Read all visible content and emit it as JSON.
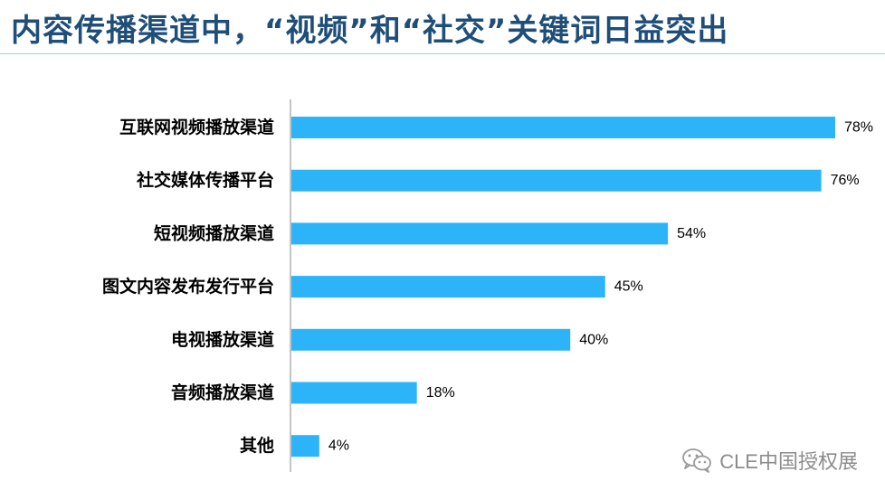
{
  "title": "内容传播渠道中，“视频”和“社交”关键词日益突出",
  "watermark": {
    "icon": "wechat-icon",
    "text": "CLE中国授权展"
  },
  "colors": {
    "title": "#1f4e79",
    "bar": "#2db4f8",
    "axis": "#888888",
    "rule": "#9fd6c8"
  },
  "chart_data": {
    "type": "bar",
    "orientation": "horizontal",
    "categories": [
      "互联网视频播放渠道",
      "社交媒体传播平台",
      "短视频播放渠道",
      "图文内容发布发行平台",
      "电视播放渠道",
      "音频播放渠道",
      "其他"
    ],
    "values": [
      78,
      76,
      54,
      45,
      40,
      18,
      4
    ],
    "value_labels": [
      "78%",
      "76%",
      "54%",
      "45%",
      "40%",
      "18%",
      "4%"
    ],
    "xlim": [
      0,
      78
    ],
    "grid": false,
    "legend": "none"
  }
}
